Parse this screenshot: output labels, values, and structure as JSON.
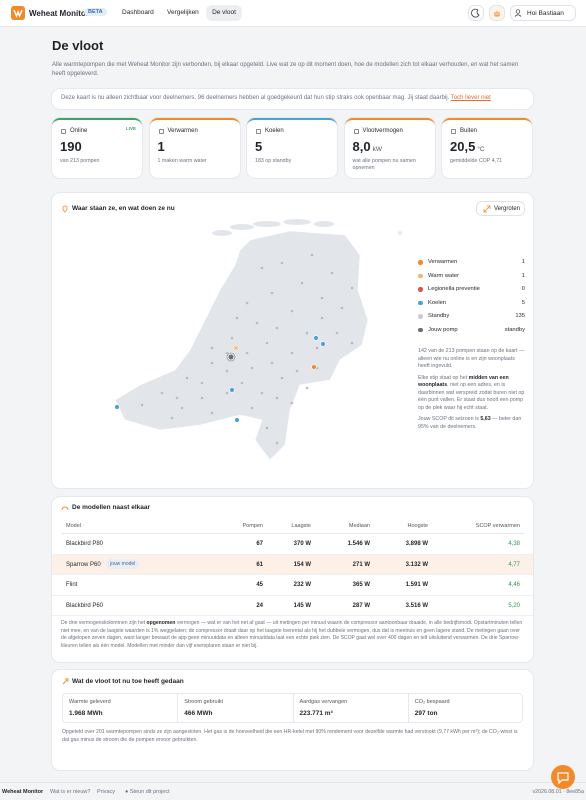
{
  "header": {
    "brand": "Weheat Monitor",
    "badge": "BETA",
    "nav": [
      "Dashboard",
      "Vergelijken",
      "De vloot"
    ],
    "user": "Hoi Bastiaan"
  },
  "page": {
    "title": "De vloot",
    "intro": "Alle warmtepompen die met Weheat Monitor zijn verbonden, bij elkaar opgeteld. Live wat ze op dit moment doen, hoe de modellen zich tot elkaar verhouden, en wat het samen heeft opgeleverd."
  },
  "notice": {
    "text": "Deze kaart is nu alleen zichtbaar voor deelnemers. 96 deelnemers hebben al goedgekeurd dat hun stip straks ook openbaar mag. Jij staat daarbij.",
    "link": "Toch liever niet"
  },
  "stats": [
    {
      "label": "Online",
      "tag": "LIVE",
      "value": 190,
      "sub": "van 213 pompen"
    },
    {
      "label": "Verwarmen",
      "value": 1,
      "sub": "1 maken warm water"
    },
    {
      "label": "Koelen",
      "value": 5,
      "sub": "183 op standby"
    },
    {
      "label": "Vlootvermogen",
      "value": "8,0",
      "unit": "kW",
      "sub": "wat alle pompen nu samen opnemen"
    },
    {
      "label": "Buiten",
      "value": "20,5",
      "unit": "°C",
      "sub": "gemiddelde COP 4,71"
    }
  ],
  "map": {
    "title": "Waar staan ze, en wat doen ze nu",
    "button": "Vergroten",
    "legend": [
      {
        "label": "Verwarmen",
        "value": 1
      },
      {
        "label": "Warm water",
        "value": 1
      },
      {
        "label": "Legionella preventie",
        "value": 0
      },
      {
        "label": "Koelen",
        "value": 5
      },
      {
        "label": "Standby",
        "value": 135
      },
      {
        "label": "Jouw pomp",
        "value": "standby"
      }
    ],
    "note1": "142 van de 213 pompen staan op de kaart — alleen wie nu online is en zijn woonplaats heeft ingevuld.",
    "note2": [
      "Elke stip staat op het ",
      "midden van een woonplaats",
      ", niet op een adres, en is daarbinnen wat verspreid zodat buren niet op één punt vallen. Er staat dus nooit een pomp op de plek waar hij echt staat."
    ],
    "note3": [
      "Jouw SCOP dit seizoen is ",
      "5,63",
      " — beter dan 95% van de deelnemers."
    ]
  },
  "models": {
    "title": "De modellen naast elkaar",
    "columns": [
      "Model",
      "Pompen",
      "Laagste",
      "Mediaan",
      "Hoogste",
      "SCOP verwarmen"
    ],
    "rows": [
      {
        "model": "Blackbird P80",
        "pumps": 67,
        "low": "370 W",
        "median": "1.546 W",
        "high": "3.898 W",
        "scop": "4,38"
      },
      {
        "model": "Sparrow P60",
        "badge": "jouw model",
        "pumps": 61,
        "low": "154 W",
        "median": "271 W",
        "high": "3.132 W",
        "scop": "4,77"
      },
      {
        "model": "Flint",
        "pumps": 45,
        "low": "232 W",
        "median": "365 W",
        "high": "1.591 W",
        "scop": "4,46"
      },
      {
        "model": "Blackbird P60",
        "pumps": 24,
        "low": "145 W",
        "median": "287 W",
        "high": "3.516 W",
        "scop": "5,20"
      }
    ],
    "note": [
      "De drie vermogenskolommen zijn het ",
      "opgenomen",
      " vermogen — wat er van het net af gaat — uit metingen per minuut waarin de compressor aantoonbaar draaide, in alle bedrijfsmodi. Opstartminuten tellen niet mee, en van de laagste waarden is 1% weggelaten; de compressor draait daar op het laagste toerental als hij het dubbele vermogen, dus dat is meetruis en geen lagere stand. De metingen gaan over de afgelopen zeven dagen, want langer bewaart de app geen minuutdata en alleen minuutdata laat een echte piek zien. De SCOP gaat wel over 400 dagen en telt uitsluitend verwarmen. De drie Sparrow-kleuren tellen als één model. Modellen met minder dan vijf exemplaren staan er niet bij."
    ]
  },
  "totals": {
    "title": "Wat de vloot tot nu toe heeft gedaan",
    "items": [
      {
        "label": "Warmte geleverd",
        "value": "1.968 MWh"
      },
      {
        "label": "Stroom gebruikt",
        "value": "466 MWh"
      },
      {
        "label": "Aardgas vervangen",
        "value": "223.771 m³"
      },
      {
        "label": "CO₂ bespaard",
        "value": "297 ton"
      }
    ],
    "note": "Opgeteld over 201 warmtepompen sinds ze zijn aangesloten. Het gas is de hoeveelheid die een HR-ketel met 90% rendement voor dezelfde warmte had verstookt (9,77 kWh per m³); de CO₂-winst is dat gas minus de stroom die de pompen ervoor gebruikten."
  },
  "footer": {
    "brand": "Weheat Monitor",
    "links": [
      "Wat is er nieuw?",
      "Privacy",
      "Steun dit project"
    ],
    "version": "v2026.08.01 · 8ee85a"
  }
}
